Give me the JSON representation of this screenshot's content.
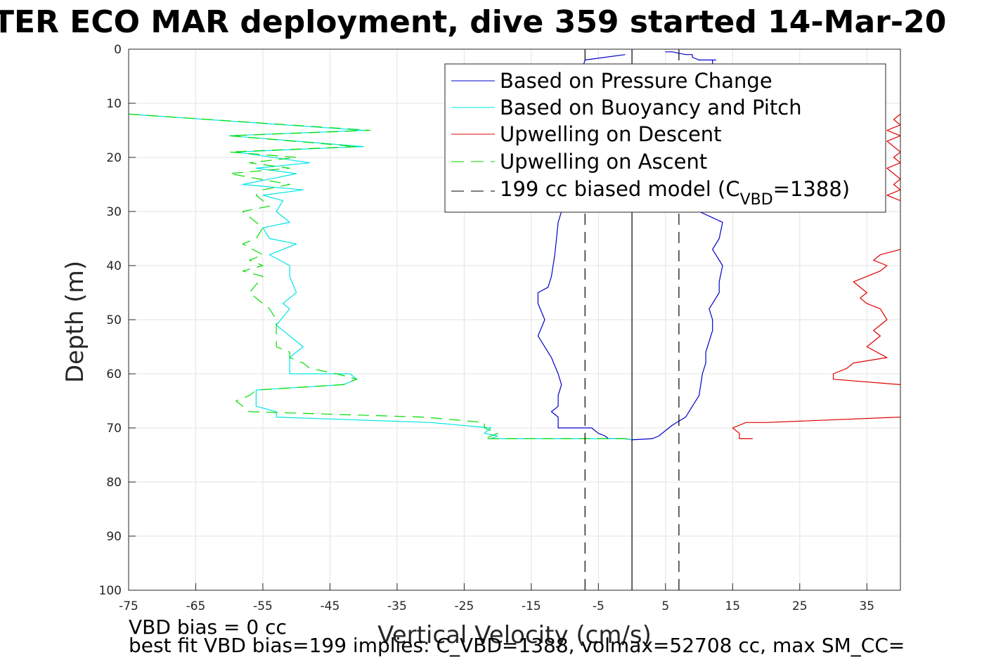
{
  "chart_data": {
    "type": "line",
    "title": "TER ECO MAR deployment, dive 359 started 14-Mar-20",
    "xlabel": "Vertical Velocity (cm/s)",
    "ylabel": "Depth (m)",
    "xlim": [
      -75,
      40
    ],
    "ylim": [
      0,
      100
    ],
    "y_reversed": true,
    "grid": true,
    "xticks": [
      "-75",
      "-65",
      "-55",
      "-45",
      "-35",
      "-25",
      "-15",
      "-5",
      "5",
      "15",
      "25",
      "35"
    ],
    "yticks": [
      "0",
      "10",
      "20",
      "30",
      "40",
      "50",
      "60",
      "70",
      "80",
      "90",
      "100"
    ],
    "legend": {
      "location": "top-right",
      "entries": [
        {
          "label": "Based on Pressure Change",
          "color": "#0000cc",
          "style": "solid"
        },
        {
          "label": "Based on Buoyancy and Pitch",
          "color": "#00e5e5",
          "style": "solid"
        },
        {
          "label": "Upwelling on Descent",
          "color": "#e00000",
          "style": "solid"
        },
        {
          "label": "Upwelling on Ascent",
          "color": "#00dd00",
          "style": "dashed"
        },
        {
          "label": "199 cc biased model (C",
          "sub": "VBD",
          "suffix": "=1388)",
          "color": "#000000",
          "style": "dashed"
        }
      ]
    },
    "series": [
      {
        "name": "Based on Pressure Change",
        "color": "#0000cc",
        "x": [
          -1,
          -7,
          -9,
          -10,
          -10.5,
          -11,
          -11.5,
          -12,
          -12.5,
          -14,
          -14,
          -13,
          -14,
          -12,
          -11,
          -10.5,
          -11,
          -11,
          -12,
          -11,
          -11,
          -10,
          -6,
          -5,
          -4,
          -3.5,
          -1,
          0
        ],
        "y": [
          1,
          2,
          10,
          20,
          30,
          32,
          38,
          42,
          44,
          45,
          47,
          50,
          53,
          57,
          60,
          62,
          64,
          66,
          67,
          68,
          70,
          70,
          70,
          71,
          71.5,
          72,
          72,
          72.2
        ]
      },
      {
        "name": "Based on Pressure Change",
        "color": "#0000cc",
        "x": [
          0,
          3,
          4,
          5,
          6,
          8,
          9,
          10,
          10.5,
          11,
          11,
          12,
          12,
          11.5,
          12,
          13,
          13,
          13.5,
          12,
          13,
          13.5,
          10,
          9,
          10,
          10,
          11,
          11.5,
          12,
          12,
          12.5,
          11,
          10,
          9,
          9,
          8,
          6,
          5,
          6
        ],
        "y": [
          72.2,
          72,
          71.5,
          70.5,
          69.5,
          68,
          66,
          64,
          60,
          58,
          56,
          52,
          50,
          48,
          47,
          45,
          43,
          40,
          37,
          35,
          32,
          30,
          28,
          20,
          15,
          10,
          5,
          3,
          2,
          2,
          2,
          2,
          1.5,
          1,
          1,
          0.5,
          0.5,
          0.5
        ]
      },
      {
        "name": "Based on Buoyancy and Pitch",
        "color": "#00e5e5",
        "x": [
          -75,
          -40,
          -60,
          -40,
          -59,
          -48,
          -56,
          -50,
          -58,
          -49,
          -55,
          -52,
          -53,
          -51,
          -55,
          -54,
          -50,
          -54,
          -51,
          -51,
          -50,
          -51,
          -52,
          -51,
          -53,
          -49,
          -51,
          -51,
          -51,
          -50,
          -47,
          -44,
          -42,
          -41,
          -43,
          -56,
          -56,
          -56,
          -53,
          -53,
          -30,
          -21,
          -22,
          -20,
          -21,
          -17,
          -10,
          -1,
          0
        ],
        "y": [
          12,
          15,
          16,
          18,
          19,
          21,
          22,
          23,
          25,
          26,
          27,
          28,
          30,
          32,
          33,
          35,
          36,
          38,
          40,
          42,
          45,
          46,
          47,
          48,
          51,
          55,
          57,
          59,
          60,
          60,
          60,
          60,
          60,
          61,
          62,
          63,
          64,
          66,
          67,
          68,
          69,
          70,
          71,
          71.5,
          72,
          72,
          72,
          72,
          72.2
        ]
      },
      {
        "name": "Upwelling on Ascent",
        "color": "#00dd00",
        "dashed": true,
        "x": [
          -75,
          -39,
          -60,
          -41,
          -60,
          -50,
          -57,
          -51,
          -60,
          -51,
          -55,
          -56,
          -54,
          -58,
          -55,
          -56,
          -58,
          -55,
          -57,
          -55,
          -58,
          -55,
          -57,
          -55,
          -54,
          -53,
          -53,
          -53,
          -53,
          -51,
          -51,
          -49,
          -48,
          -44,
          -41,
          -43,
          -56,
          -57,
          -59,
          -58,
          -57,
          -31,
          -22,
          -22,
          -20,
          -22,
          -17,
          -10,
          -1,
          0
        ],
        "y": [
          12,
          15,
          16,
          18,
          19,
          20,
          21,
          22,
          23,
          25,
          26,
          27,
          29,
          30,
          33,
          35,
          36,
          38,
          39,
          40,
          41,
          42,
          45,
          47,
          48,
          50,
          52,
          54,
          55,
          56,
          57,
          58,
          59,
          60,
          61,
          62,
          63,
          64,
          65,
          66,
          67,
          68,
          69,
          70,
          71,
          72,
          72,
          72,
          72,
          72.2
        ]
      },
      {
        "name": "Upwelling on Descent",
        "color": "#e00000",
        "x": [
          18,
          16,
          16,
          15,
          17,
          20,
          40
        ],
        "y": [
          72,
          72,
          71,
          70,
          69,
          69,
          68
        ]
      },
      {
        "name": "Upwelling on Descent",
        "color": "#e00000",
        "x": [
          40,
          30,
          30,
          32,
          33,
          38,
          35,
          37,
          36,
          38,
          37,
          35,
          34,
          35,
          33,
          37,
          38,
          36,
          37,
          40
        ],
        "y": [
          62,
          61,
          60,
          59,
          58,
          57,
          55,
          53,
          52,
          50,
          48,
          47,
          46,
          45,
          43,
          41,
          40,
          39,
          38,
          37
        ]
      },
      {
        "name": "Upwelling on Descent",
        "color": "#e00000",
        "x": [
          40,
          38,
          40,
          39,
          40,
          38,
          40,
          39,
          40,
          38,
          40,
          38,
          40,
          39,
          40
        ],
        "y": [
          28,
          27,
          26,
          25,
          24,
          22,
          21,
          20,
          19,
          17,
          16,
          15,
          14,
          13,
          12
        ]
      },
      {
        "name": "199 cc biased model",
        "color": "#000000",
        "dashed": true,
        "x": [
          -7,
          -7
        ],
        "y": [
          0,
          100
        ]
      },
      {
        "name": "199 cc biased model",
        "color": "#000000",
        "dashed": true,
        "x": [
          7,
          7
        ],
        "y": [
          0,
          100
        ]
      },
      {
        "name": "zero line",
        "color": "#000000",
        "x": [
          0,
          0
        ],
        "y": [
          0,
          100
        ]
      }
    ]
  },
  "footer": {
    "line1": "VBD bias = 0 cc",
    "line2": "best fit VBD bias=199 implies: C_VBD=1388, volmax=52708 cc, max SM_CC="
  }
}
